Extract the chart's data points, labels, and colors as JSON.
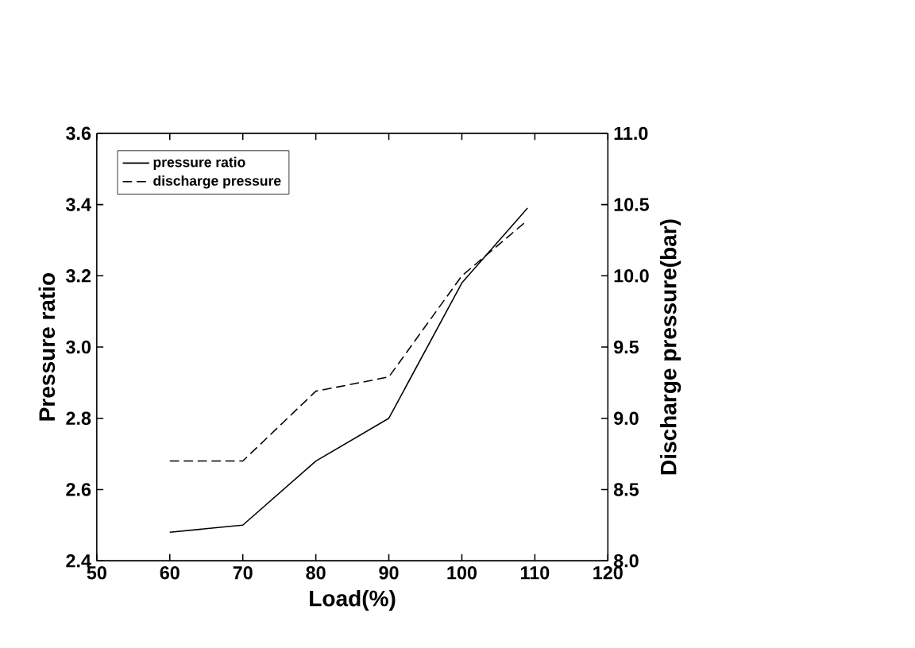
{
  "chart_data": {
    "type": "line",
    "xlabel": "Load(%)",
    "ylabel": "Pressure ratio",
    "y2label": "Discharge pressure(bar)",
    "xlim": [
      50,
      120
    ],
    "xticks": [
      50,
      60,
      70,
      80,
      90,
      100,
      110,
      120
    ],
    "ylim": [
      2.4,
      3.6
    ],
    "yticks": [
      {
        "value": 2.4,
        "label": "2.4"
      },
      {
        "value": 2.6,
        "label": "2.6"
      },
      {
        "value": 2.8,
        "label": "2.8"
      },
      {
        "value": 3.0,
        "label": "3.0"
      },
      {
        "value": 3.2,
        "label": "3.2"
      },
      {
        "value": 3.4,
        "label": "3.4"
      },
      {
        "value": 3.6,
        "label": "3.6"
      }
    ],
    "y2lim": [
      8.0,
      11.0
    ],
    "y2ticks": [
      {
        "value": 8.0,
        "label": "8.0"
      },
      {
        "value": 8.5,
        "label": "8.5"
      },
      {
        "value": 9.0,
        "label": "9.0"
      },
      {
        "value": 9.5,
        "label": "9.5"
      },
      {
        "value": 10.0,
        "label": "10.0"
      },
      {
        "value": 10.5,
        "label": "10.5"
      },
      {
        "value": 11.0,
        "label": "11.0"
      }
    ],
    "legend": "top left",
    "grid": false,
    "series": [
      {
        "name": "pressure ratio",
        "color": "#000000",
        "line_style": "solid",
        "x": [
          60,
          70,
          80,
          90,
          100,
          109
        ],
        "values": [
          2.48,
          2.5,
          2.68,
          2.8,
          3.18,
          3.39
        ]
      },
      {
        "name": "discharge pressure",
        "color": "#000000",
        "line_style": "dashed",
        "axis": "y2",
        "x": [
          60,
          70,
          80,
          90,
          100,
          109
        ],
        "values": [
          8.7,
          8.7,
          9.19,
          9.29,
          10.0,
          10.39
        ]
      }
    ]
  }
}
